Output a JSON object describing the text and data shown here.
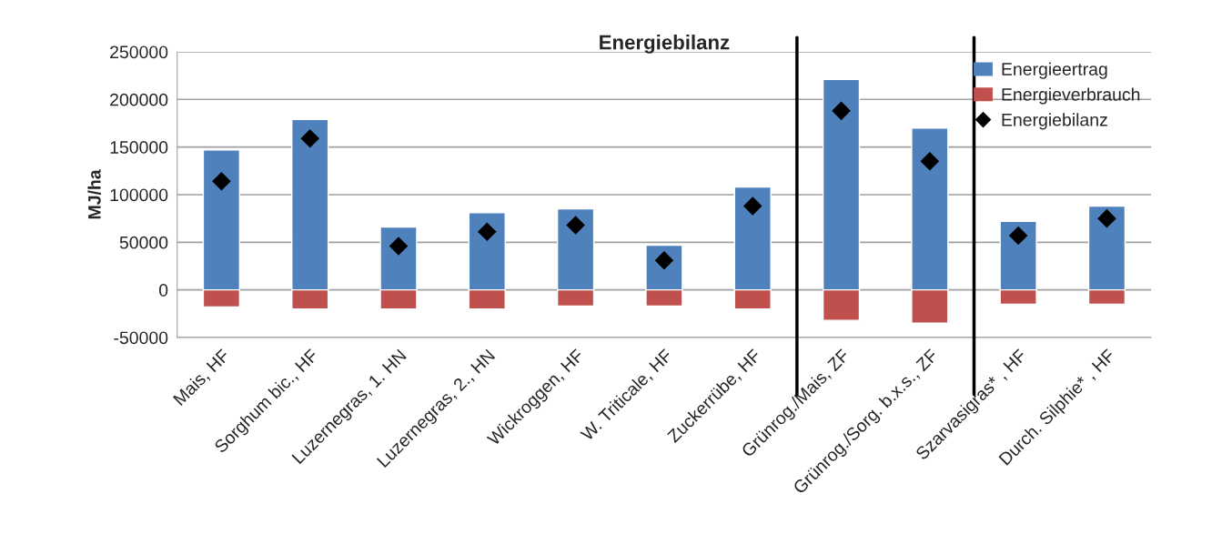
{
  "chart_data": {
    "type": "bar",
    "title": "Energiebilanz",
    "ylabel": "MJ/ha",
    "categories": [
      "Mais, HF",
      "Sorghum bic., HF",
      "Luzernegras, 1. HN",
      "Luzernegras, 2., HN",
      "Wickroggen, HF",
      "W. Triticale, HF",
      "Zuckerrübe, HF",
      "Grünrog./Mais, ZF",
      "Grünrog./Sorg. b.x.s., ZF",
      "Szarvasigras* , HF",
      "Durch. Silphie* , HF"
    ],
    "series": [
      {
        "name": "Energieertrag",
        "color": "#4f81bd",
        "values": [
          147000,
          179000,
          66000,
          81000,
          85000,
          47000,
          108000,
          221000,
          170000,
          72000,
          88000
        ]
      },
      {
        "name": "Energieverbrauch",
        "color": "#c0504d",
        "values": [
          -18000,
          -20000,
          -20000,
          -20000,
          -17000,
          -17000,
          -20000,
          -32000,
          -35000,
          -15000,
          -15000
        ]
      },
      {
        "name": "Energiebilanz",
        "type": "scatter",
        "marker": "diamond",
        "color": "#000000",
        "values": [
          114000,
          159000,
          46000,
          61000,
          68000,
          31000,
          88000,
          188000,
          135000,
          57000,
          75000
        ]
      }
    ],
    "stacked": true,
    "ylim": [
      -50000,
      250000
    ],
    "yticks": [
      -50000,
      0,
      50000,
      100000,
      150000,
      200000,
      250000
    ],
    "grid": "y",
    "legend": "top right"
  }
}
